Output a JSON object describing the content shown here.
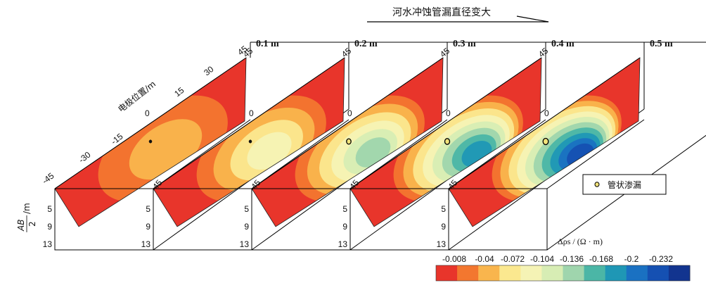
{
  "title": "河水冲蚀管漏直径变大",
  "panels": [
    {
      "diameter": "0.1 m",
      "anomaly": 0.0
    },
    {
      "diameter": "0.2 m",
      "anomaly": 0.3
    },
    {
      "diameter": "0.3 m",
      "anomaly": 0.55
    },
    {
      "diameter": "0.4 m",
      "anomaly": 0.8
    },
    {
      "diameter": "0.5 m",
      "anomaly": 1.0
    }
  ],
  "electrode_axis": {
    "label": "电极位置/m",
    "ticks": [
      "-45",
      "-30",
      "-15",
      "0",
      "15",
      "30",
      "45"
    ]
  },
  "depth_axis": {
    "label_num": "AB",
    "label_den": "2",
    "label_unit": "/m",
    "ticks": [
      "5",
      "9",
      "13"
    ]
  },
  "legend": {
    "label": "管状渗漏"
  },
  "colorbar": {
    "title": "Δρs / (Ω · m)",
    "labels": [
      "-0.008",
      "-0.04",
      "-0.072",
      "-0.104",
      "-0.136",
      "-0.168",
      "-0.2",
      "-0.232"
    ],
    "colors": [
      "#e8352b",
      "#f3772f",
      "#f9b54d",
      "#fbe88f",
      "#f5f3b5",
      "#d7edb4",
      "#9fd5ad",
      "#4bb6a6",
      "#1f97b5",
      "#1a71c2",
      "#1550b2",
      "#12348f"
    ]
  }
}
